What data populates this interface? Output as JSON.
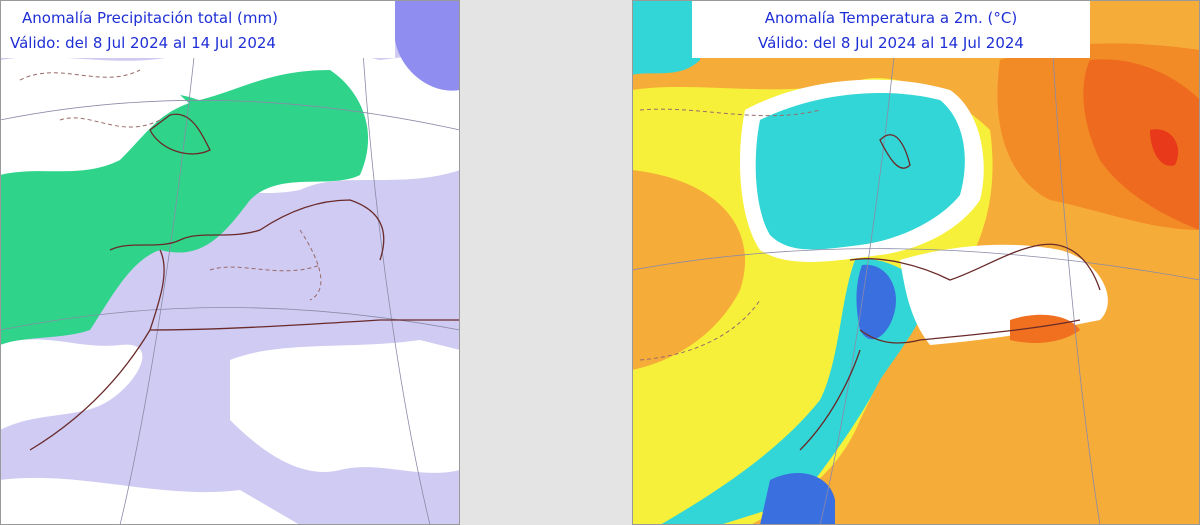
{
  "panels": [
    {
      "title": "Anomalía Precipitación total (mm)",
      "subtitle": "Válido: del 8 Jul 2024 al 14 Jul 2024"
    },
    {
      "title": "Anomalía Temperatura a 2m. (°C)",
      "subtitle": "Válido: del 8 Jul 2024 al 14 Jul 2024"
    }
  ]
}
